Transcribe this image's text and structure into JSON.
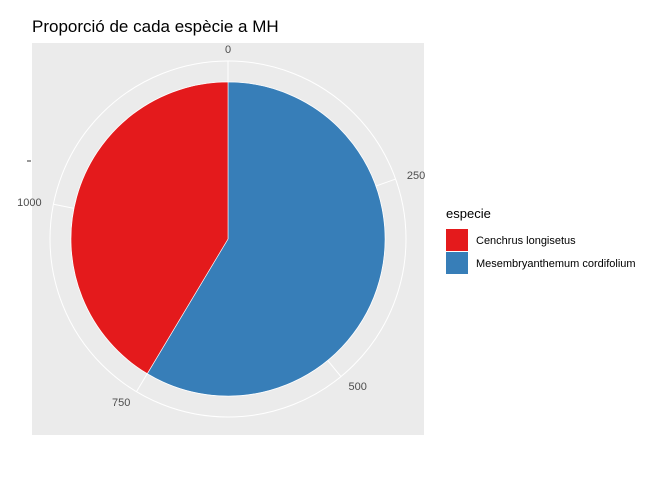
{
  "chart_data": {
    "type": "pie",
    "title": "Proporció de cada espècie a MH",
    "legend_title": "especie",
    "legend_position": "right",
    "axis_ticks": [
      "0",
      "250",
      "500",
      "750",
      "1000"
    ],
    "tick_values": [
      0,
      250,
      500,
      750,
      1000
    ],
    "axis_max": 1280,
    "grid": true,
    "slices": [
      {
        "name": "Mesembryanthemum cordifolium",
        "value": 750,
        "color": "#377eb8"
      },
      {
        "name": "Cenchrus longisetus",
        "value": 530,
        "color": "#e41a1c"
      }
    ],
    "legend": [
      {
        "label": "Cenchrus longisetus",
        "color": "#e41a1c"
      },
      {
        "label": "Mesembryanthemum cordifolium",
        "color": "#377eb8"
      }
    ]
  }
}
